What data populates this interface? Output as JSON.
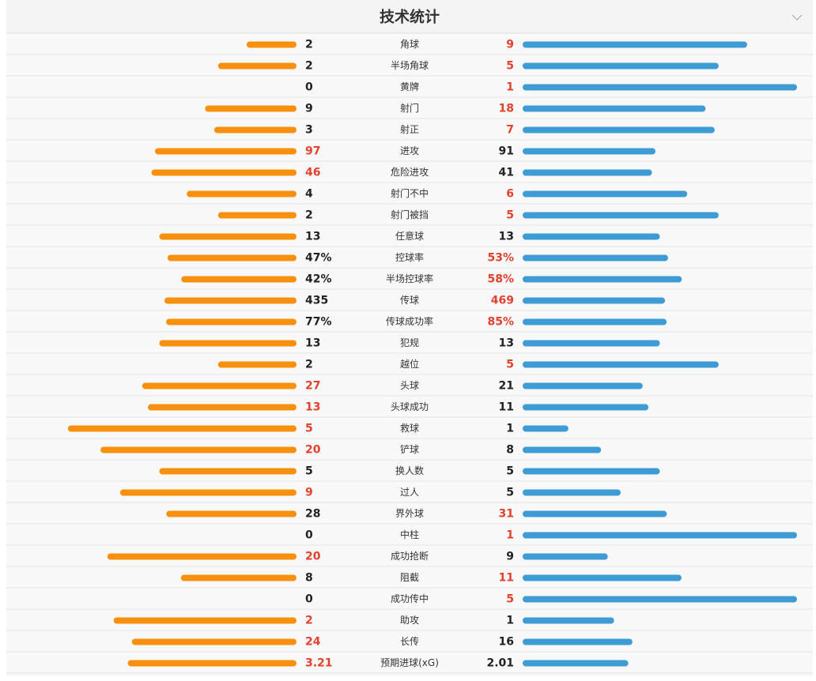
{
  "chart_data": {
    "type": "diverging-bar",
    "title": "技术统计",
    "categories": [
      "角球",
      "半场角球",
      "黄牌",
      "射门",
      "射正",
      "进攻",
      "危险进攻",
      "射门不中",
      "射门被挡",
      "任意球",
      "控球率",
      "半场控球率",
      "传球",
      "传球成功率",
      "犯规",
      "越位",
      "头球",
      "头球成功",
      "救球",
      "铲球",
      "换人数",
      "过人",
      "界外球",
      "中柱",
      "成功抢断",
      "阻截",
      "成功传中",
      "助攻",
      "长传",
      "预期进球(xG)"
    ],
    "series": [
      {
        "color": "#f7900f",
        "values": [
          2,
          2,
          0,
          9,
          3,
          97,
          46,
          4,
          2,
          13,
          47,
          42,
          435,
          77,
          13,
          2,
          27,
          13,
          5,
          20,
          5,
          9,
          28,
          0,
          20,
          8,
          0,
          2,
          24,
          3.21
        ],
        "value_labels": [
          "2",
          "2",
          "0",
          "9",
          "3",
          "97",
          "46",
          "4",
          "2",
          "13",
          "47%",
          "42%",
          "435",
          "77%",
          "13",
          "2",
          "27",
          "13",
          "5",
          "20",
          "5",
          "9",
          "28",
          "0",
          "20",
          "8",
          "0",
          "2",
          "24",
          "3.21"
        ]
      },
      {
        "color": "#3e9bd5",
        "values": [
          9,
          5,
          1,
          18,
          7,
          91,
          41,
          6,
          5,
          13,
          53,
          58,
          469,
          85,
          13,
          5,
          21,
          11,
          1,
          8,
          5,
          5,
          31,
          1,
          9,
          11,
          5,
          1,
          16,
          2.01
        ],
        "value_labels": [
          "9",
          "5",
          "1",
          "18",
          "7",
          "91",
          "41",
          "6",
          "5",
          "13",
          "53%",
          "58%",
          "469",
          "85%",
          "13",
          "5",
          "21",
          "11",
          "1",
          "8",
          "5",
          "5",
          "31",
          "1",
          "9",
          "11",
          "5",
          "1",
          "16",
          "2.01"
        ]
      }
    ],
    "highlight_color": "#e2412e"
  }
}
